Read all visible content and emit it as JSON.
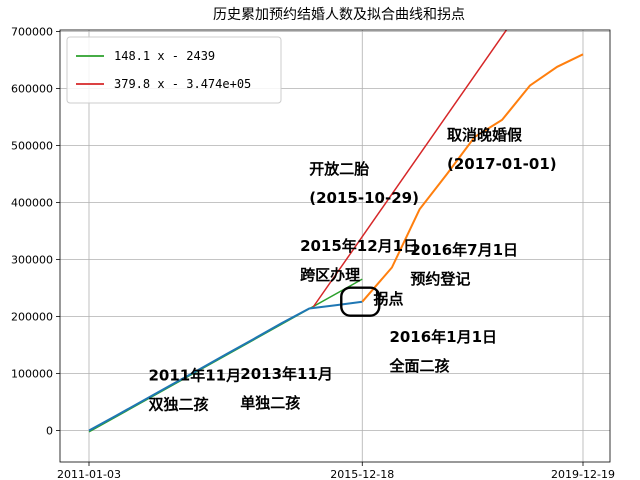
{
  "chart_data": {
    "type": "line",
    "title": "历史累加预约结婚人数及拟合曲线和拐点",
    "xlabel": "",
    "ylabel": "",
    "x_range": [
      "2011-01-03",
      "2019-12-19"
    ],
    "x_ticks": [
      "2011-01-03",
      "2015-12-18",
      "2019-12-19"
    ],
    "ylim": [
      -30000,
      700000
    ],
    "y_ticks": [
      0,
      100000,
      200000,
      300000,
      400000,
      500000,
      600000,
      700000
    ],
    "grid": true,
    "legend_position": "top-left",
    "series": [
      {
        "name": "148.1 x - 2439",
        "color": "#2ca02c",
        "kind": "fit",
        "x_days": [
          0,
          1810
        ],
        "values": [
          -2439,
          265622
        ]
      },
      {
        "name": "379.8 x - 3.474e+05",
        "color": "#d62728",
        "kind": "fit",
        "x_days": [
          1485,
          3272
        ],
        "values": [
          216600,
          895300
        ]
      },
      {
        "name": "",
        "color": "#1f77b4",
        "kind": "data",
        "x": [
          "2011-01-03",
          "2011-07-01",
          "2012-01-01",
          "2012-07-01",
          "2013-01-01",
          "2013-07-01",
          "2014-01-01",
          "2014-07-01",
          "2015-01-01",
          "2015-07-01",
          "2015-12-18"
        ],
        "values": [
          0,
          26000,
          53000,
          80000,
          107000,
          134000,
          161000,
          188000,
          214000,
          220000,
          226000
        ]
      },
      {
        "name": "",
        "color": "#ff7f0e",
        "kind": "data",
        "x": [
          "2015-12-18",
          "2016-07-01",
          "2017-01-01",
          "2017-07-01",
          "2018-01-01",
          "2018-07-01",
          "2019-01-01",
          "2019-07-01",
          "2019-12-19"
        ],
        "values": [
          226000,
          286000,
          388000,
          450000,
          515000,
          545000,
          605000,
          638000,
          660000
        ]
      }
    ],
    "annotations": [
      {
        "lines": [
          "2011年11月",
          "双独二孩"
        ],
        "x": "2012-02-01",
        "y": 88000
      },
      {
        "lines": [
          "2013年11月",
          "单独二孩"
        ],
        "x": "2013-10-01",
        "y": 90000
      },
      {
        "lines": [
          "2015年12月1日",
          "跨区办理"
        ],
        "x": "2014-11-01",
        "y": 315000
      },
      {
        "lines": [
          "开放二胎",
          "(2015-10-29)"
        ],
        "x": "2015-01-01",
        "y": 450000
      },
      {
        "lines": [
          "拐点"
        ],
        "x": "2016-03-01",
        "y": 222000
      },
      {
        "lines": [
          "2016年1月1日",
          "全面二孩"
        ],
        "x": "2016-06-15",
        "y": 155000
      },
      {
        "lines": [
          "2016年7月1日",
          "预约登记"
        ],
        "x": "2016-11-01",
        "y": 308000
      },
      {
        "lines": [
          "取消晚婚假",
          "(2017-01-01)"
        ],
        "x": "2017-07-01",
        "y": 510000
      }
    ],
    "inflection_point": {
      "x": "2015-12-18",
      "y": 226000
    }
  }
}
